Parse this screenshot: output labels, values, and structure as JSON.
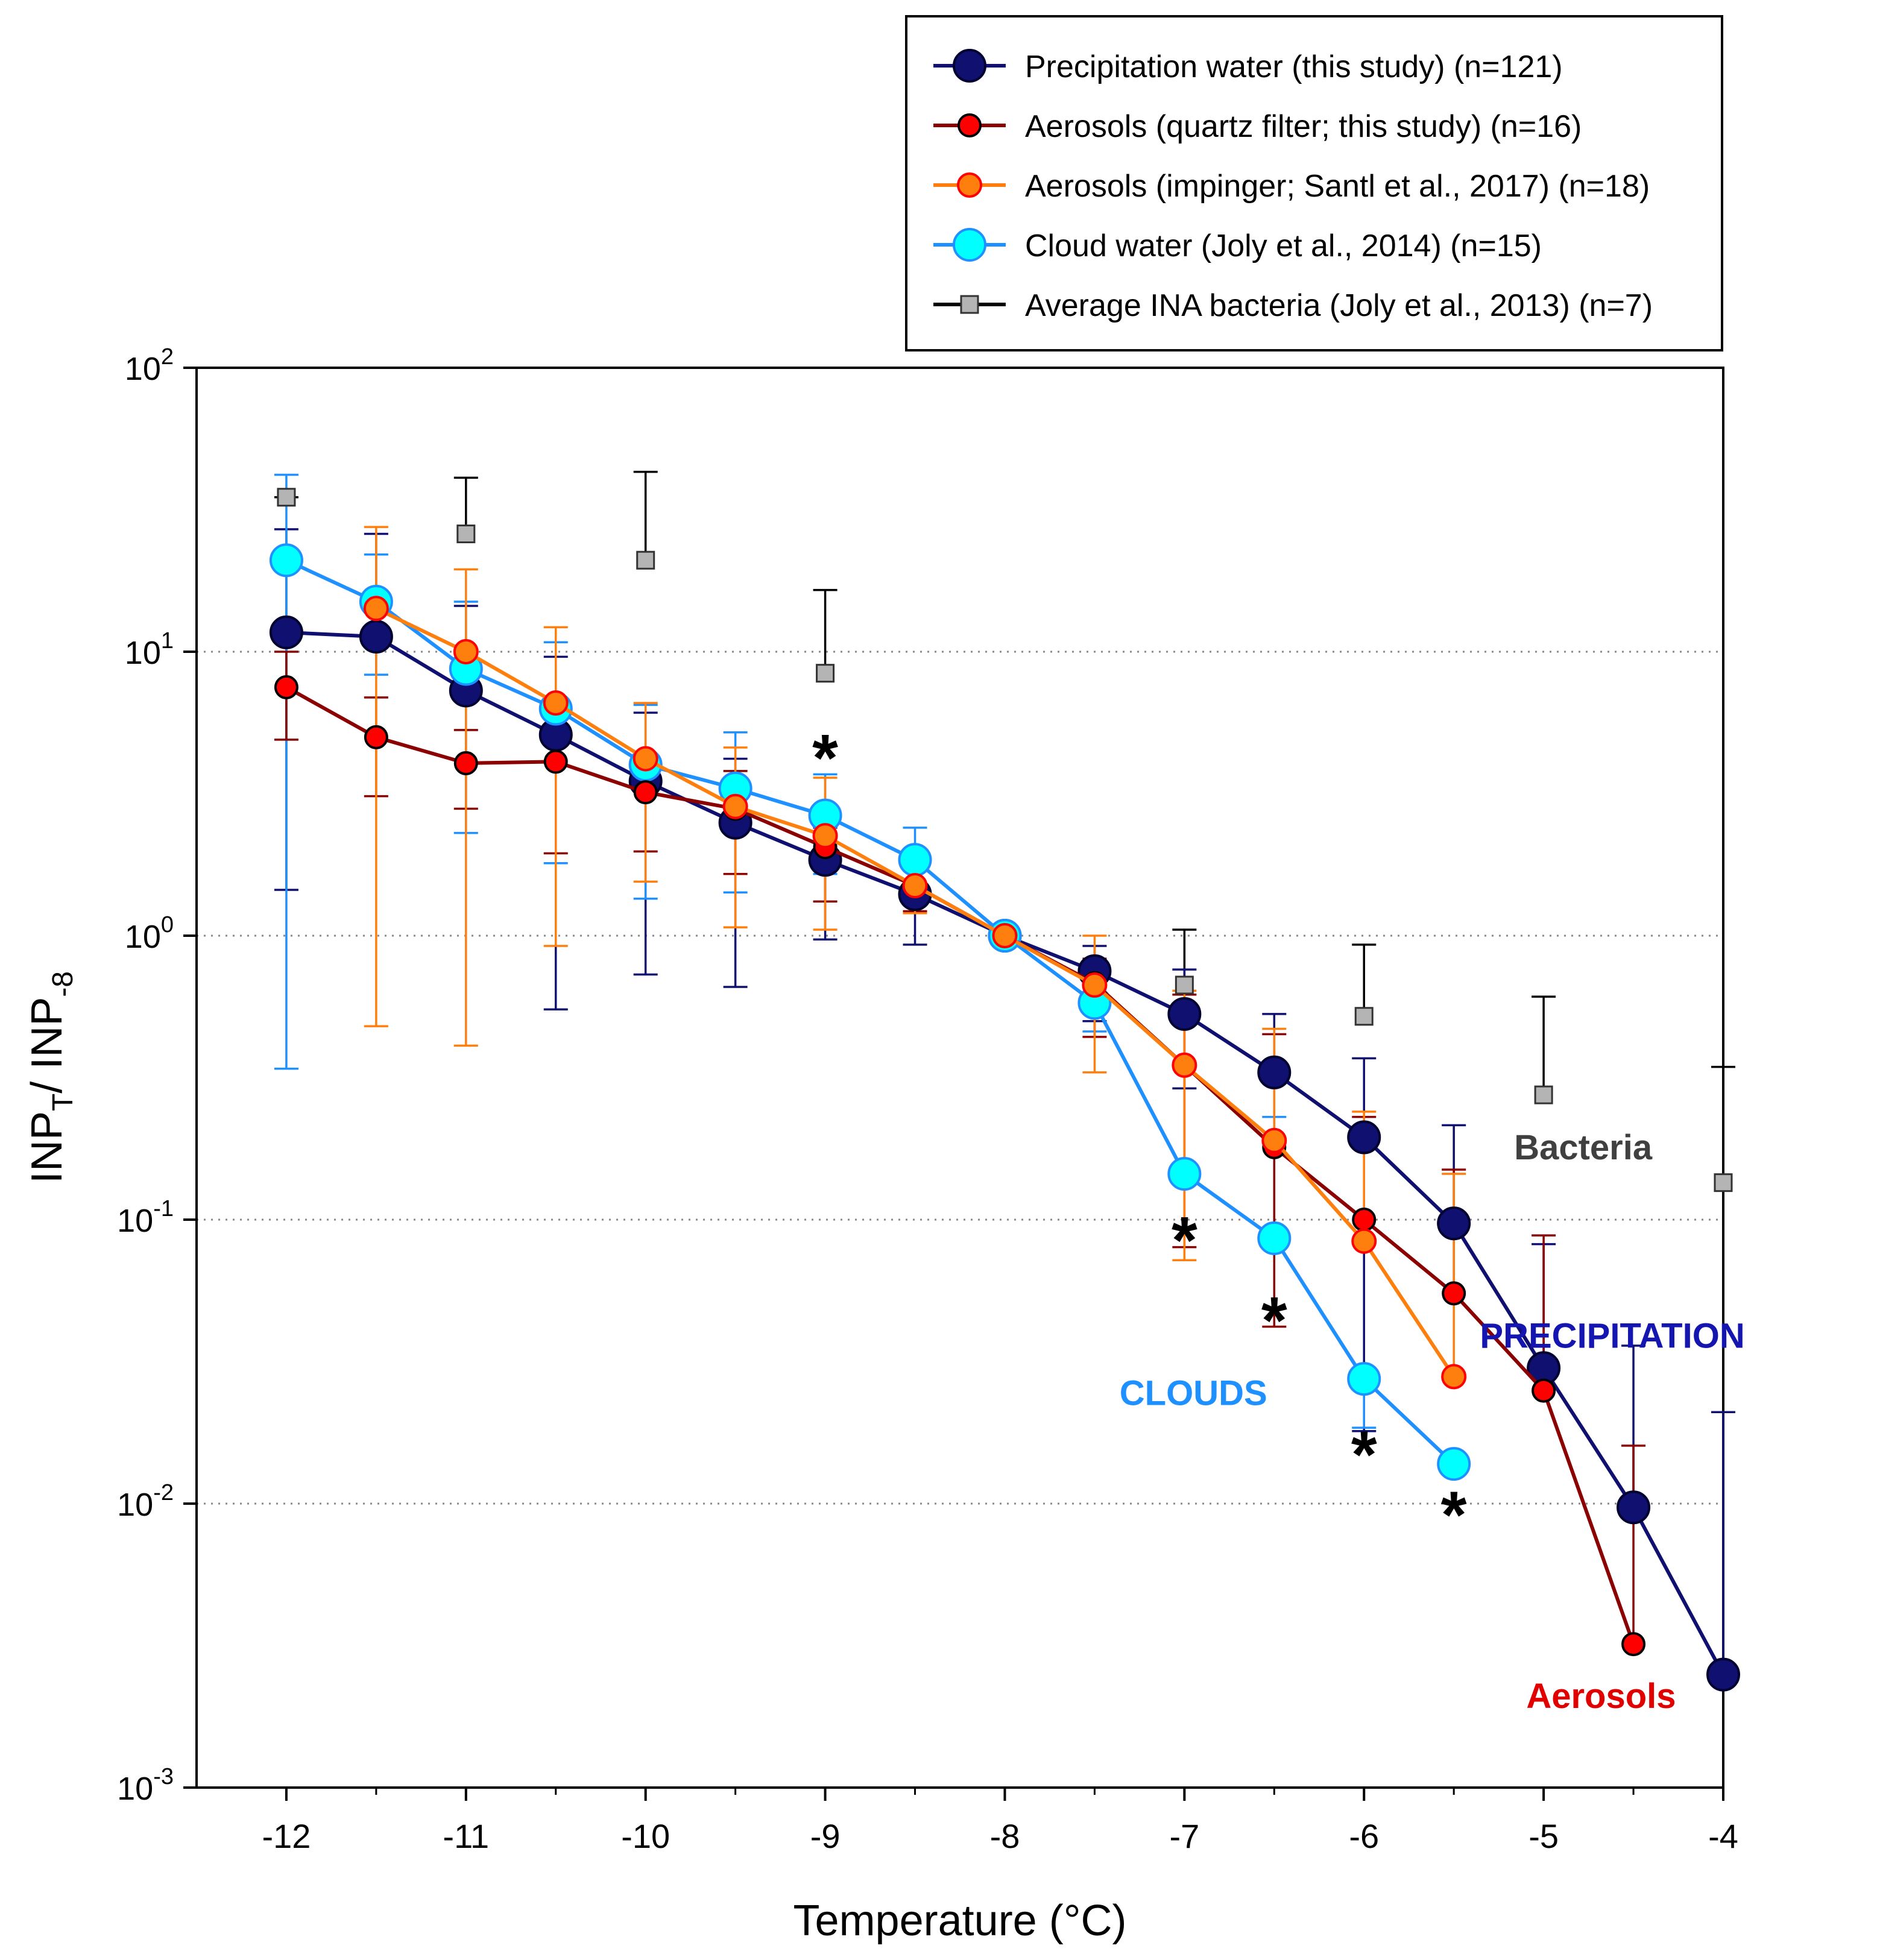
{
  "chart_data": {
    "type": "line",
    "x_scale": "linear",
    "y_scale": "log",
    "xlabel": "Temperature (°C)",
    "ylabel": {
      "main": "INP",
      "sub_t": "T",
      "sep": "/ INP",
      "sub_8": "-8"
    },
    "xlim": [
      -12.5,
      -4
    ],
    "ylim": [
      0.001,
      100
    ],
    "xticks": [
      -12,
      -11,
      -10,
      -9,
      -8,
      -7,
      -6,
      -5,
      -4
    ],
    "xtick_labels": [
      "-12",
      "-11",
      "-10",
      "-9",
      "-8",
      "-7",
      "-6",
      "-5",
      "-4"
    ],
    "yticks": [
      {
        "value": 100,
        "base": "10",
        "exp": "2"
      },
      {
        "value": 10,
        "base": "10",
        "exp": "1"
      },
      {
        "value": 1,
        "base": "10",
        "exp": "0"
      },
      {
        "value": 0.1,
        "base": "10",
        "exp": "-1"
      },
      {
        "value": 0.01,
        "base": "10",
        "exp": "-2"
      },
      {
        "value": 0.001,
        "base": "10",
        "exp": "-3"
      }
    ],
    "gridlines_y": [
      10,
      1,
      0.1,
      0.01
    ],
    "legend_position": "top-right, above plot",
    "series": [
      {
        "name": "Precipitation water (this study) (n=121)",
        "color": "#101070",
        "marker": "circle-large",
        "x": [
          -12,
          -11.5,
          -11,
          -10.5,
          -10,
          -9.5,
          -9,
          -8.5,
          -8,
          -7.5,
          -7,
          -6.5,
          -6,
          -5.5,
          -5,
          -4.5,
          -4
        ],
        "y": [
          11.7,
          11.3,
          7.3,
          5.1,
          3.5,
          2.5,
          1.85,
          1.4,
          1.0,
          0.75,
          0.53,
          0.33,
          0.195,
          0.097,
          0.03,
          0.0097,
          0.0025
        ],
        "err_upper": [
          27,
          26,
          14.5,
          9.6,
          6.1,
          4.2,
          2.4,
          1.75,
          null,
          0.92,
          0.76,
          0.53,
          0.37,
          0.215,
          0.082,
          0.036,
          0.021
        ],
        "err_lower": [
          1.45,
          null,
          null,
          0.55,
          0.73,
          0.66,
          0.97,
          0.93,
          null,
          0.5,
          0.29,
          null,
          0.018,
          null,
          null,
          null,
          null
        ]
      },
      {
        "name": "Aerosols (quartz filter; this study) (n=16)",
        "color": "#8b0000",
        "marker": "circle-small",
        "x": [
          -12,
          -11.5,
          -11,
          -10.5,
          -10,
          -9.5,
          -9,
          -8.5,
          -8,
          -7.5,
          -7,
          -6.5,
          -6,
          -5.5,
          -5,
          -4.5
        ],
        "y": [
          7.5,
          5.0,
          4.05,
          4.1,
          3.2,
          2.8,
          2.05,
          1.5,
          1.0,
          0.68,
          0.35,
          0.18,
          0.1,
          0.055,
          0.025,
          0.0032
        ],
        "err_upper": [
          10,
          6.9,
          5.3,
          6.0,
          4.3,
          3.8,
          2.45,
          1.7,
          null,
          0.83,
          0.62,
          0.45,
          0.23,
          0.15,
          0.088,
          0.016
        ],
        "err_lower": [
          4.9,
          3.1,
          2.8,
          1.95,
          1.98,
          1.65,
          1.32,
          1.22,
          null,
          0.44,
          0.08,
          0.042,
          null,
          null,
          null,
          null
        ]
      },
      {
        "name": "Aerosols (impinger; Santl et al., 2017) (n=18)",
        "color": "#ff7f0e",
        "marker": "circle-medium",
        "x": [
          -11.5,
          -11,
          -10.5,
          -10,
          -9.5,
          -9,
          -8.5,
          -8,
          -7.5,
          -7,
          -6.5,
          -6,
          -5.5
        ],
        "y": [
          14.2,
          10.0,
          6.6,
          4.2,
          2.85,
          2.25,
          1.5,
          1.0,
          0.67,
          0.35,
          0.19,
          0.084,
          0.028
        ],
        "err_upper": [
          27.5,
          19.5,
          12.2,
          6.6,
          4.6,
          3.6,
          1.8,
          null,
          1.0,
          0.64,
          0.47,
          0.24,
          0.145
        ],
        "err_lower": [
          0.48,
          0.41,
          0.92,
          1.55,
          1.07,
          1.05,
          1.2,
          null,
          0.33,
          0.072,
          null,
          null,
          null
        ]
      },
      {
        "name": "Cloud water (Joly et al., 2014) (n=15)",
        "color": "#1e90ff",
        "marker_fill": "#00ffff",
        "marker": "circle-large",
        "x": [
          -12,
          -11.5,
          -11,
          -10.5,
          -10,
          -9.5,
          -9,
          -8.5,
          -8,
          -7.5,
          -7,
          -6.5,
          -6,
          -5.5
        ],
        "y": [
          21,
          15,
          8.7,
          6.3,
          4.0,
          3.3,
          2.65,
          1.85,
          1.0,
          0.58,
          0.145,
          0.086,
          0.0275,
          0.0138
        ],
        "err_upper": [
          42,
          22,
          15,
          10.8,
          6.5,
          5.2,
          3.7,
          2.4,
          null,
          0.8,
          0.36,
          0.23,
          null,
          null
        ],
        "err_lower": [
          0.34,
          8.3,
          2.3,
          1.8,
          1.35,
          1.42,
          1.65,
          1.28,
          null,
          0.46,
          null,
          null,
          0.0185,
          null
        ]
      },
      {
        "name": "Average INA bacteria (Joly et al., 2013) (n=7)",
        "color": "#000000",
        "marker_fill": "#b4b4b4",
        "marker": "square",
        "x": [
          -12,
          -11,
          -10,
          -9,
          -7,
          -6,
          -5,
          -4
        ],
        "y": [
          35,
          26,
          21,
          8.4,
          0.67,
          0.52,
          0.275,
          0.135
        ],
        "err_upper": [
          35,
          41,
          43,
          16.5,
          1.05,
          0.93,
          0.61,
          0.345
        ],
        "err_lower": [
          null,
          null,
          null,
          null,
          null,
          null,
          null,
          null
        ],
        "no_line": true
      }
    ],
    "annotations": [
      {
        "text": "Bacteria",
        "color": "#404040"
      },
      {
        "text": "PRECIPITATION",
        "color": "#1515b0"
      },
      {
        "text": "CLOUDS",
        "color": "#1e90ff"
      },
      {
        "text": "Aerosols",
        "color": "#e00000"
      }
    ],
    "significance_markers": [
      {
        "symbol": "*",
        "x": -9,
        "y": 4.4
      },
      {
        "symbol": "*",
        "x": -7,
        "y": 0.088
      },
      {
        "symbol": "*",
        "x": -6.5,
        "y": 0.046
      },
      {
        "symbol": "*",
        "x": -6,
        "y": 0.0155
      },
      {
        "symbol": "*",
        "x": -5.5,
        "y": 0.0095
      }
    ]
  }
}
